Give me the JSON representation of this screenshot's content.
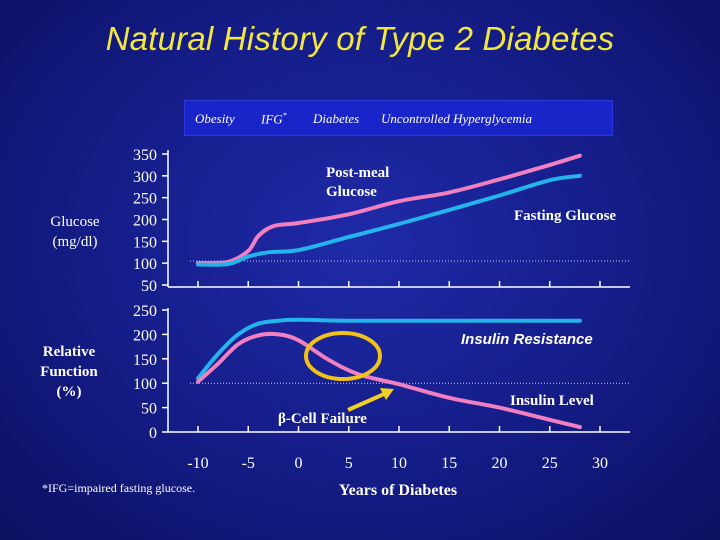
{
  "title": "Natural History of Type 2 Diabetes",
  "stages": {
    "obesity": "Obesity",
    "ifg": "IFG",
    "ifg_mark": "*",
    "diabetes": "Diabetes",
    "uncontrolled": "Uncontrolled Hyperglycemia"
  },
  "left_labels": {
    "glucose": [
      "Glucose",
      "(mg/dl)"
    ],
    "relative_function": [
      "Relative",
      "Function",
      "(%)"
    ]
  },
  "footnote": "*IFG=impaired fasting glucose.",
  "colors": {
    "pink": "#f27fc0",
    "cyan": "#23b4ec",
    "circle": "#f2c21a",
    "arrow": "#f2d021",
    "text": "#ffffff",
    "title": "#f2e640",
    "stage_bar": "#1a25c9"
  },
  "chart_data": [
    {
      "type": "line",
      "ylabel": "Glucose (mg/dl)",
      "yticks": [
        "350",
        "300",
        "250",
        "200",
        "150",
        "100",
        "50"
      ],
      "ylim": [
        50,
        350
      ],
      "xlim": [
        -15,
        30
      ],
      "reference_line": 105,
      "series": [
        {
          "name": "Post-meal Glucose",
          "color": "#f27fc0",
          "x": [
            -10,
            -7,
            -5,
            -4,
            -2.5,
            0,
            5,
            10,
            15,
            20,
            25,
            28
          ],
          "y": [
            100,
            103,
            128,
            162,
            185,
            192,
            212,
            242,
            262,
            292,
            325,
            346
          ]
        },
        {
          "name": "Fasting Glucose",
          "color": "#23b4ec",
          "x": [
            -10,
            -7,
            -5,
            -3,
            0,
            5,
            10,
            15,
            20,
            25,
            28
          ],
          "y": [
            97,
            98,
            115,
            125,
            130,
            160,
            190,
            222,
            255,
            290,
            300
          ]
        }
      ]
    },
    {
      "type": "line",
      "ylabel": "Relative Function (%)",
      "yticks": [
        "250",
        "200",
        "150",
        "100",
        "50",
        "0"
      ],
      "ylim": [
        0,
        250
      ],
      "xlim": [
        -15,
        30
      ],
      "xticks": [
        "-10",
        "-5",
        "0",
        "5",
        "10",
        "15",
        "20",
        "25",
        "30"
      ],
      "xlabel": "Years of Diabetes",
      "reference_line": 100,
      "series": [
        {
          "name": "Insulin Resistance",
          "color": "#23b4ec",
          "x": [
            -10,
            -8,
            -6,
            -4,
            -2,
            0,
            5,
            10,
            20,
            28
          ],
          "y": [
            110,
            160,
            200,
            222,
            228,
            230,
            228,
            228,
            228,
            228
          ]
        },
        {
          "name": "Insulin Level",
          "color": "#f27fc0",
          "x": [
            -10,
            -8,
            -6,
            -4,
            -2,
            0,
            3,
            6,
            10,
            15,
            20,
            25,
            28
          ],
          "y": [
            103,
            140,
            180,
            198,
            200,
            188,
            148,
            118,
            98,
            70,
            50,
            25,
            10
          ]
        }
      ],
      "annotations": {
        "beta_cell_failure": "-Cell Failure",
        "beta_symbol": "β"
      }
    }
  ]
}
